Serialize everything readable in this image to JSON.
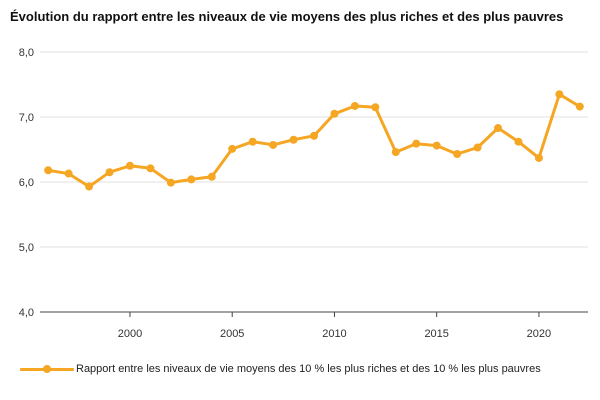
{
  "chart_data": {
    "type": "line",
    "title": "Évolution du rapport entre les niveaux de vie moyens des plus riches et des plus pauvres",
    "xlabel": "",
    "ylabel": "",
    "xlim": [
      1995.6,
      2022.4
    ],
    "ylim": [
      4.0,
      8.0
    ],
    "y_ticks": [
      4.0,
      5.0,
      6.0,
      7.0,
      8.0
    ],
    "y_tick_labels": [
      "4,0",
      "5,0",
      "6,0",
      "7,0",
      "8,0"
    ],
    "x_ticks": [
      2000,
      2005,
      2010,
      2015,
      2020
    ],
    "x_tick_labels": [
      "2000",
      "2005",
      "2010",
      "2015",
      "2020"
    ],
    "grid": "horizontal",
    "legend_position": "bottom",
    "color": "#F5A623",
    "x": [
      1996,
      1997,
      1998,
      1999,
      2000,
      2001,
      2002,
      2003,
      2004,
      2005,
      2006,
      2007,
      2008,
      2009,
      2010,
      2011,
      2012,
      2013,
      2014,
      2015,
      2016,
      2017,
      2018,
      2019,
      2020,
      2021,
      2022
    ],
    "series": [
      {
        "name": "Rapport entre les niveaux de vie moyens des 10 % les plus riches et des 10 % les plus pauvres",
        "values": [
          6.18,
          6.13,
          5.93,
          6.15,
          6.25,
          6.21,
          5.99,
          6.04,
          6.08,
          6.51,
          6.62,
          6.57,
          6.65,
          6.71,
          7.05,
          7.17,
          7.15,
          6.46,
          6.59,
          6.56,
          6.43,
          6.53,
          6.83,
          6.62,
          6.37,
          7.35,
          7.16
        ]
      }
    ]
  }
}
